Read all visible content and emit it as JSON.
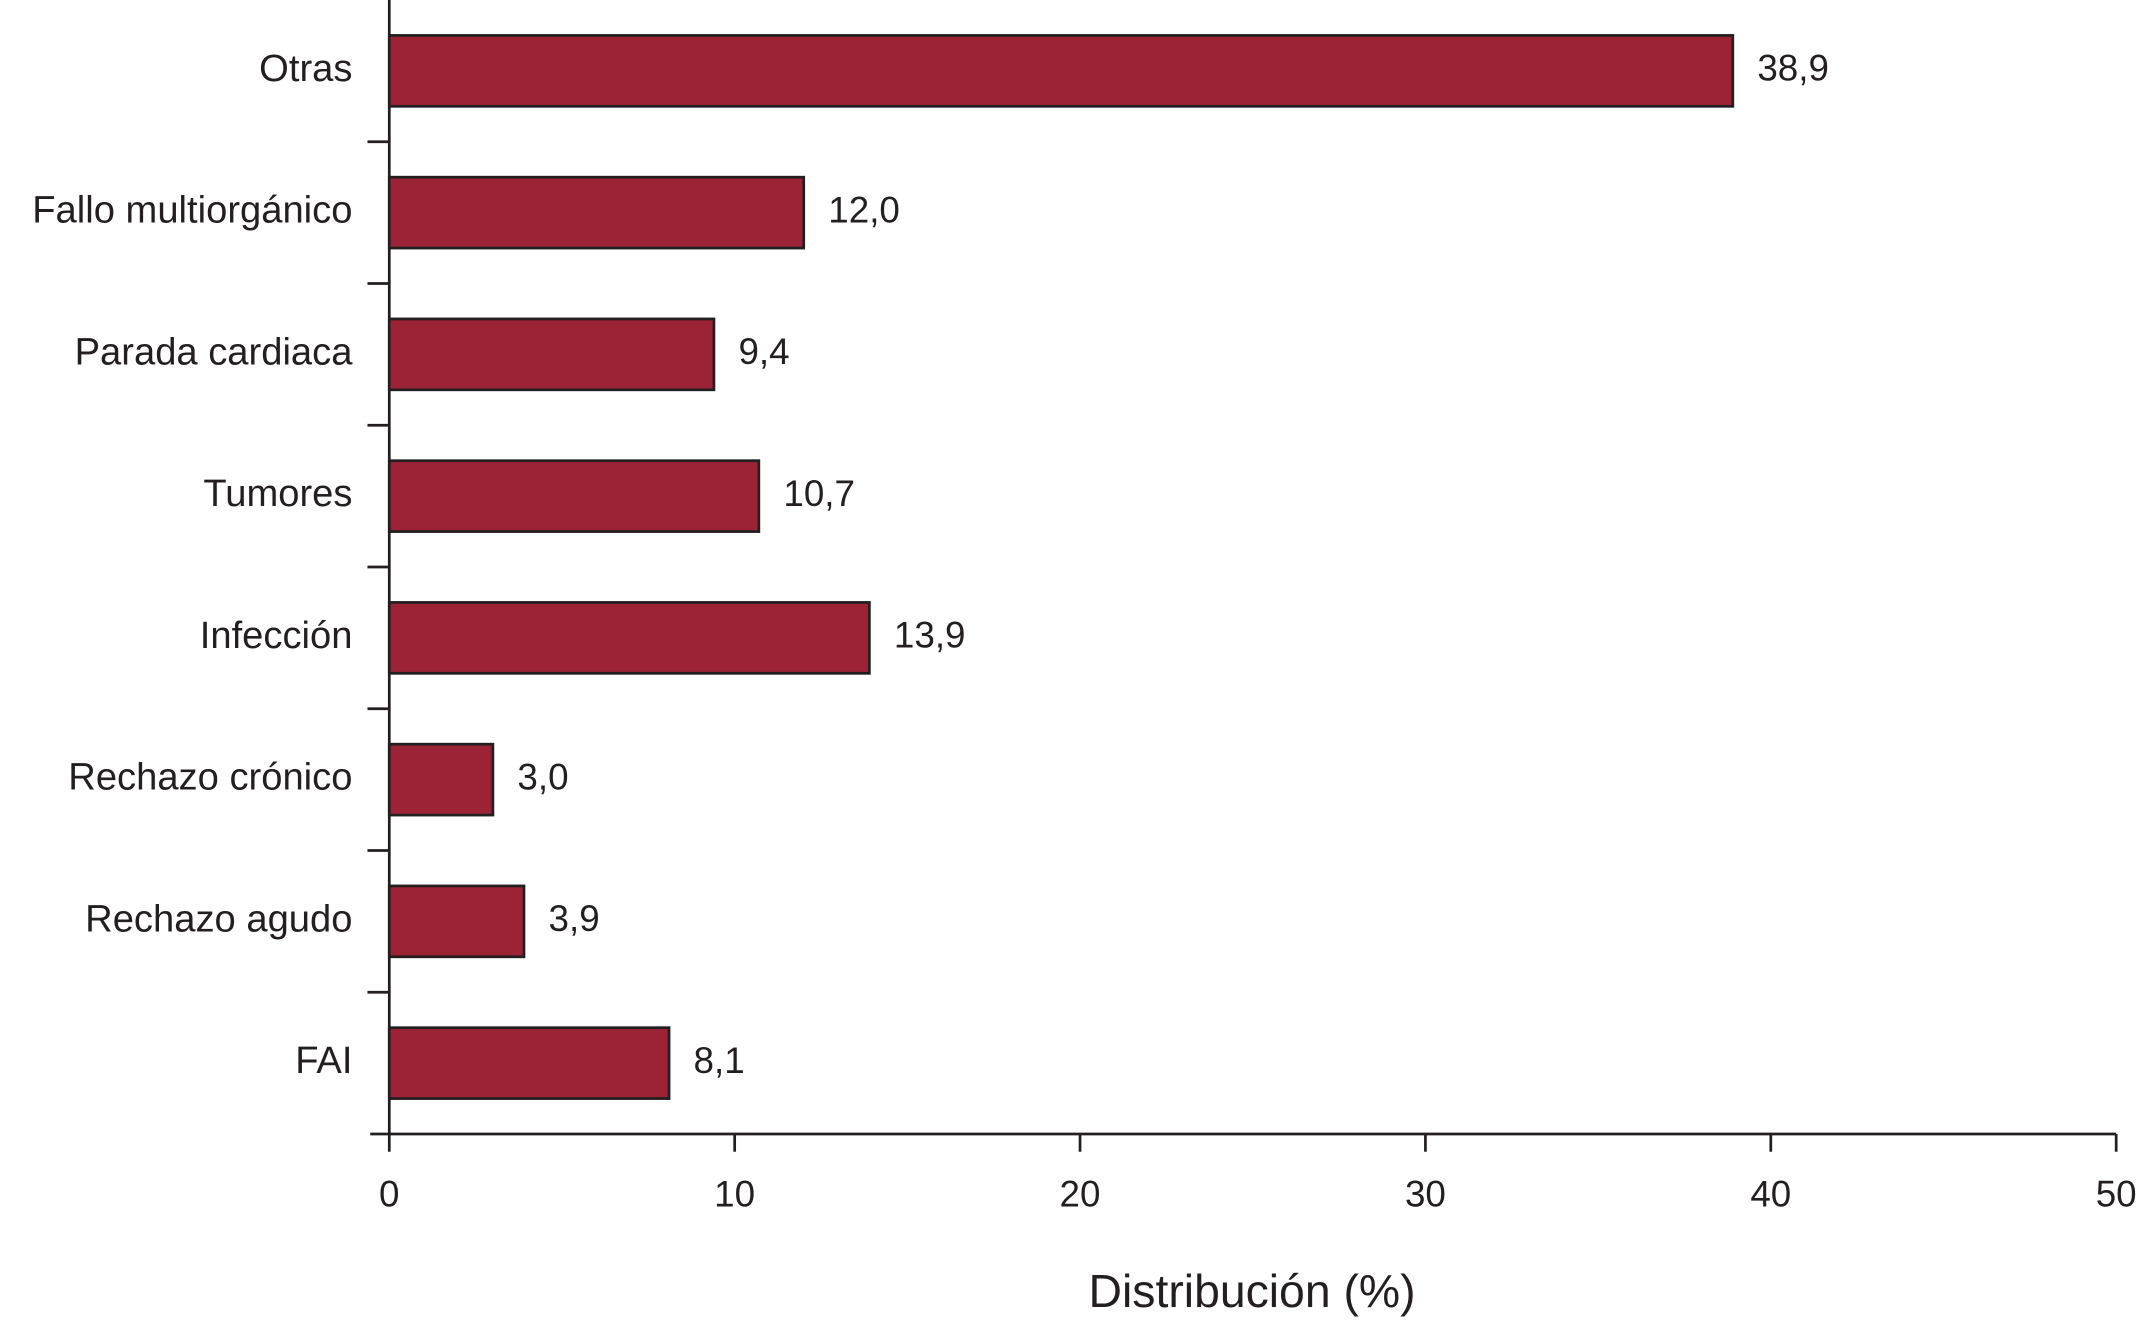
{
  "chart_data": {
    "type": "hbar",
    "x_label": "Distribución (%)",
    "categories": [
      "Otras",
      "Fallo multiorgánico",
      "Parada cardiaca",
      "Tumores",
      "Infección",
      "Rechazo crónico",
      "Rechazo agudo",
      "FAI"
    ],
    "values": [
      38.9,
      12.0,
      9.4,
      10.7,
      13.9,
      3.0,
      3.9,
      8.1
    ],
    "value_labels": [
      "38,9",
      "12,0",
      "9,4",
      "10,7",
      "13,9",
      "3,0",
      "3,9",
      "8,1"
    ],
    "color": "#9b2335",
    "xlim": [
      0,
      50
    ],
    "xticks": [
      0,
      10,
      20,
      30,
      40,
      50
    ]
  }
}
